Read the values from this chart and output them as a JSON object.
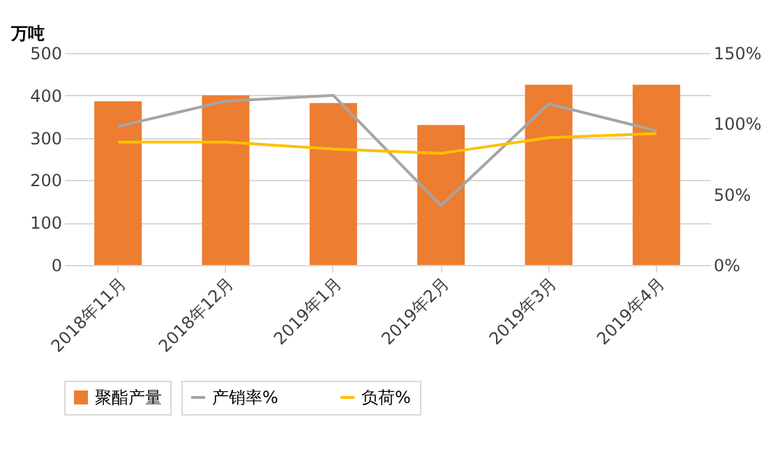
{
  "chart_data": {
    "type": "bar",
    "ylabel": "万吨",
    "categories": [
      "2018年11月",
      "2018年12月",
      "2019年1月",
      "2019年2月",
      "2019年3月",
      "2019年4月"
    ],
    "series": [
      {
        "name": "聚酯产量",
        "color": "#ed7d31",
        "values": [
          386,
          400,
          382,
          330,
          425,
          425
        ]
      },
      {
        "name": "产销率%",
        "type": "line",
        "axis": "y2",
        "color": "#a5a5a5",
        "values": [
          98,
          116,
          120,
          42,
          114,
          95
        ]
      },
      {
        "name": "负荷%",
        "type": "line",
        "axis": "y2",
        "color": "#ffc000",
        "values": [
          87,
          87,
          82,
          79,
          90,
          93
        ]
      }
    ],
    "ylim": [
      0,
      500
    ],
    "yticks": [
      0,
      100,
      200,
      300,
      400,
      500
    ],
    "y2lim": [
      0,
      150
    ],
    "y2ticks": [
      {
        "value": 0,
        "label": "0%"
      },
      {
        "value": 50,
        "label": "50%"
      },
      {
        "value": 100,
        "label": "100%"
      },
      {
        "value": 150,
        "label": "150%"
      }
    ],
    "grid": "y",
    "legend": "bottom",
    "marker": "none",
    "line_style": "solid"
  }
}
